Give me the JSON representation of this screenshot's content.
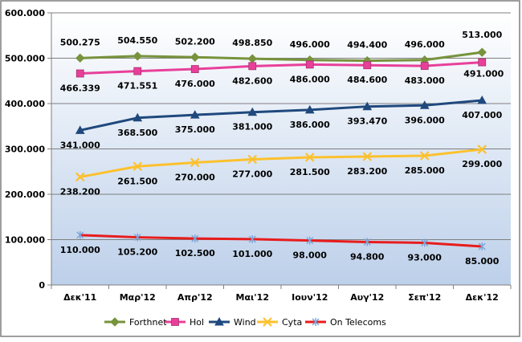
{
  "chart_data": {
    "type": "line",
    "categories": [
      "Δεκ'11",
      "Μαρ'12",
      "Απρ'12",
      "Μαι'12",
      "Ιουν'12",
      "Αυγ'12",
      "Σεπ'12",
      "Δεκ'12"
    ],
    "ylim": [
      0,
      600000
    ],
    "yticks": [
      0,
      100000,
      200000,
      300000,
      400000,
      500000,
      600000
    ],
    "ytick_labels": [
      "0",
      "100.000",
      "200.000",
      "300.000",
      "400.000",
      "500.000",
      "600.000"
    ],
    "grid": true,
    "legend": "bottom",
    "series": [
      {
        "name": "Forthnet",
        "color": "#77933c",
        "marker": "diamond",
        "values": [
          500275,
          504550,
          502200,
          498850,
          496000,
          494400,
          496000,
          513000
        ],
        "labels": [
          "500.275",
          "504.550",
          "502.200",
          "498.850",
          "496.000",
          "494.400",
          "496.000",
          "513.000"
        ]
      },
      {
        "name": "Hol",
        "color": "#e8409a",
        "marker": "square",
        "values": [
          466339,
          471551,
          476000,
          482600,
          486000,
          484600,
          483000,
          491000
        ],
        "labels": [
          "466.339",
          "471.551",
          "476.000",
          "482.600",
          "486.000",
          "484.600",
          "483.000",
          "491.000"
        ]
      },
      {
        "name": "Wind",
        "color": "#1f497d",
        "marker": "triangle",
        "values": [
          341000,
          368500,
          375000,
          381000,
          386000,
          393470,
          396000,
          407000
        ],
        "labels": [
          "341.000",
          "368.500",
          "375.000",
          "381.000",
          "386.000",
          "393.470",
          "396.000",
          "407.000"
        ]
      },
      {
        "name": "Cyta",
        "color": "#fcc12e",
        "marker": "x",
        "values": [
          238200,
          261500,
          270000,
          277000,
          281500,
          283200,
          285000,
          299000
        ],
        "labels": [
          "238.200",
          "261.500",
          "270.000",
          "277.000",
          "281.500",
          "283.200",
          "285.000",
          "299.000"
        ]
      },
      {
        "name": "On Telecoms",
        "color": "#e81c1c",
        "marker": "star",
        "values": [
          110000,
          105200,
          102500,
          101000,
          98000,
          94800,
          93000,
          85000
        ],
        "labels": [
          "110.000",
          "105.200",
          "102.500",
          "101.000",
          "98.000",
          "94.800",
          "93.000",
          "85.000"
        ]
      }
    ]
  },
  "colors": {
    "plot_background_top": "#ffffff",
    "plot_background_bottom": "#bdd0ea",
    "gridline": "#7f7f7f",
    "frame_border": "#7f7f7f"
  }
}
